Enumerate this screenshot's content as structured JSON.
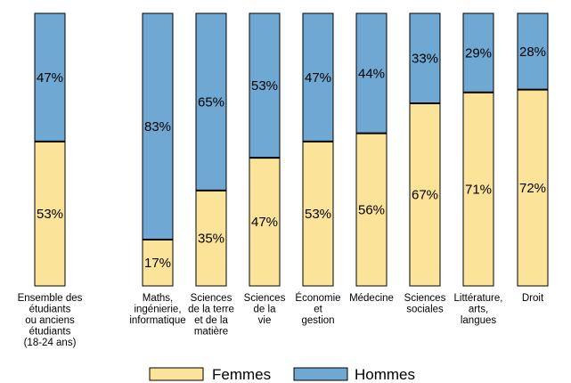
{
  "chart_data": {
    "type": "bar",
    "stacked": true,
    "normalized_percent": true,
    "categories": [
      [
        "Ensemble des",
        "étudiants",
        "ou anciens",
        "étudiants",
        "(18-24 ans)"
      ],
      [
        "Maths,",
        "ingénierie,",
        "informatique"
      ],
      [
        "Sciences",
        "de la terre",
        "et de la",
        "matière"
      ],
      [
        "Sciences",
        "de la",
        "vie"
      ],
      [
        "Économie",
        "et",
        "gestion"
      ],
      [
        "Médecine"
      ],
      [
        "Sciences",
        "sociales"
      ],
      [
        "Littérature,",
        "arts,",
        "langues"
      ],
      [
        "Droit"
      ]
    ],
    "series": [
      {
        "name": "Femmes",
        "color": "#FCE39A",
        "values": [
          53,
          17,
          35,
          47,
          53,
          56,
          67,
          71,
          72
        ]
      },
      {
        "name": "Hommes",
        "color": "#6FA8D2",
        "values": [
          47,
          83,
          65,
          53,
          47,
          44,
          33,
          29,
          28
        ]
      }
    ],
    "data_labels": {
      "Femmes": [
        "53%",
        "17%",
        "35%",
        "47%",
        "53%",
        "56%",
        "67%",
        "71%",
        "72%"
      ],
      "Hommes": [
        "47%",
        "83%",
        "65%",
        "53%",
        "47%",
        "44%",
        "33%",
        "29%",
        "28%"
      ]
    },
    "ylim": [
      0,
      100
    ],
    "grid": false,
    "legend_position": "bottom-center"
  }
}
